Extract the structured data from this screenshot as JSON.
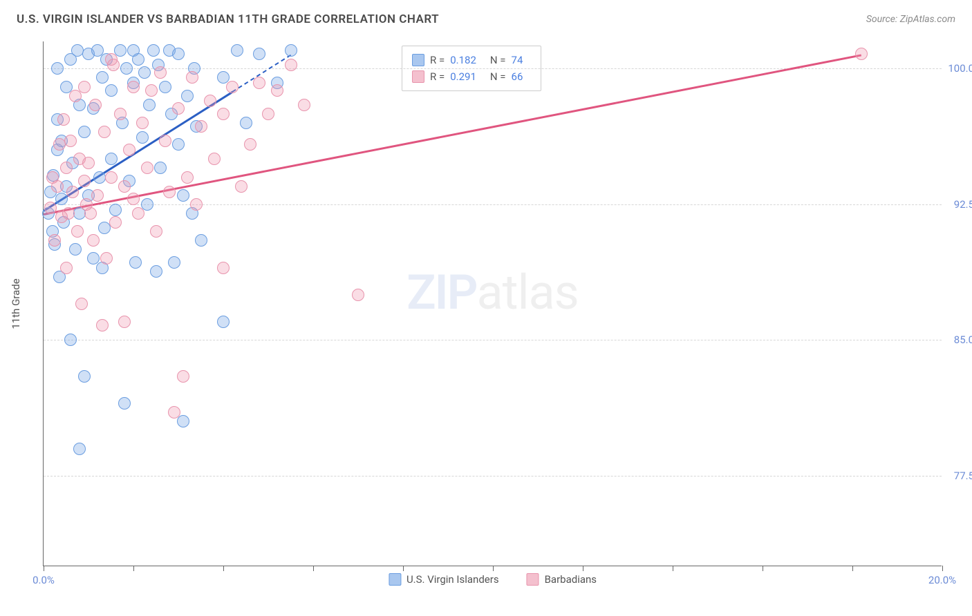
{
  "title": "U.S. VIRGIN ISLANDER VS BARBADIAN 11TH GRADE CORRELATION CHART",
  "source": "Source: ZipAtlas.com",
  "yaxis_title": "11th Grade",
  "watermark_zip": "ZIP",
  "watermark_atlas": "atlas",
  "chart": {
    "type": "scatter-correlation",
    "xlim": [
      0.0,
      20.0
    ],
    "ylim": [
      72.5,
      101.5
    ],
    "y_gridlines": [
      77.5,
      85.0,
      92.5,
      100.0
    ],
    "y_tick_labels": [
      "77.5%",
      "85.0%",
      "92.5%",
      "100.0%"
    ],
    "x_ticks": [
      0.0,
      2.0,
      4.0,
      6.0,
      8.0,
      10.0,
      12.0,
      14.0,
      16.0,
      18.0,
      20.0
    ],
    "x_tick_labels": {
      "0": "0.0%",
      "10": "20.0%"
    },
    "y_tick_color": "#6b8bd6",
    "x_tick_color": "#6b8bd6",
    "grid_color": "#d6d6d6",
    "axis_color": "#666666",
    "background": "#ffffff",
    "marker_radius": 9,
    "marker_stroke_width": 1.5,
    "series": [
      {
        "name": "U.S. Virgin Islanders",
        "color_fill": "rgba(120,165,230,0.35)",
        "color_stroke": "#6a9de0",
        "swatch_fill": "#a9c7ef",
        "swatch_border": "#6a9de0",
        "R": "0.182",
        "N": "74",
        "trend": {
          "x1": 0.0,
          "y1": 92.2,
          "x2": 5.5,
          "y2": 100.8,
          "color": "#2b5fc4",
          "dash_after_x": 4.2
        },
        "points": [
          [
            0.1,
            92.0
          ],
          [
            0.15,
            93.2
          ],
          [
            0.2,
            91.0
          ],
          [
            0.22,
            94.1
          ],
          [
            0.25,
            90.3
          ],
          [
            0.3,
            95.5
          ],
          [
            0.3,
            97.2
          ],
          [
            0.35,
            88.5
          ],
          [
            0.4,
            92.8
          ],
          [
            0.4,
            96.0
          ],
          [
            0.45,
            91.5
          ],
          [
            0.5,
            99.0
          ],
          [
            0.5,
            93.5
          ],
          [
            0.6,
            100.5
          ],
          [
            0.6,
            85.0
          ],
          [
            0.65,
            94.8
          ],
          [
            0.7,
            90.0
          ],
          [
            0.75,
            101.0
          ],
          [
            0.8,
            98.0
          ],
          [
            0.8,
            92.0
          ],
          [
            0.9,
            83.0
          ],
          [
            0.9,
            96.5
          ],
          [
            1.0,
            100.8
          ],
          [
            1.0,
            93.0
          ],
          [
            1.1,
            89.5
          ],
          [
            1.1,
            97.8
          ],
          [
            1.2,
            101.0
          ],
          [
            1.25,
            94.0
          ],
          [
            1.3,
            99.5
          ],
          [
            1.35,
            91.2
          ],
          [
            1.4,
            100.5
          ],
          [
            1.5,
            95.0
          ],
          [
            1.5,
            98.8
          ],
          [
            1.6,
            92.2
          ],
          [
            1.7,
            101.0
          ],
          [
            1.75,
            97.0
          ],
          [
            1.8,
            81.5
          ],
          [
            1.85,
            100.0
          ],
          [
            1.9,
            93.8
          ],
          [
            2.0,
            99.2
          ],
          [
            2.0,
            101.0
          ],
          [
            2.05,
            89.3
          ],
          [
            2.1,
            100.5
          ],
          [
            2.2,
            96.2
          ],
          [
            2.25,
            99.8
          ],
          [
            2.3,
            92.5
          ],
          [
            2.35,
            98.0
          ],
          [
            2.45,
            101.0
          ],
          [
            2.5,
            88.8
          ],
          [
            2.55,
            100.2
          ],
          [
            2.6,
            94.5
          ],
          [
            2.7,
            99.0
          ],
          [
            2.8,
            101.0
          ],
          [
            2.85,
            97.5
          ],
          [
            2.9,
            89.3
          ],
          [
            3.0,
            95.8
          ],
          [
            3.0,
            100.8
          ],
          [
            3.1,
            80.5
          ],
          [
            3.1,
            93.0
          ],
          [
            3.2,
            98.5
          ],
          [
            3.3,
            92.0
          ],
          [
            3.35,
            100.0
          ],
          [
            3.4,
            96.8
          ],
          [
            3.5,
            90.5
          ],
          [
            4.0,
            99.5
          ],
          [
            4.0,
            86.0
          ],
          [
            4.3,
            101.0
          ],
          [
            4.5,
            97.0
          ],
          [
            4.8,
            100.8
          ],
          [
            5.2,
            99.2
          ],
          [
            5.5,
            101.0
          ],
          [
            0.8,
            79.0
          ],
          [
            1.3,
            89.0
          ],
          [
            0.3,
            100.0
          ]
        ]
      },
      {
        "name": "Barbadians",
        "color_fill": "rgba(240,150,175,0.32)",
        "color_stroke": "#e893ac",
        "swatch_fill": "#f4c0ce",
        "swatch_border": "#e893ac",
        "R": "0.291",
        "N": "66",
        "trend": {
          "x1": 0.0,
          "y1": 92.0,
          "x2": 18.2,
          "y2": 100.8,
          "color": "#e0557f",
          "dash_after_x": null
        },
        "points": [
          [
            0.15,
            92.3
          ],
          [
            0.2,
            94.0
          ],
          [
            0.25,
            90.5
          ],
          [
            0.3,
            93.5
          ],
          [
            0.35,
            95.8
          ],
          [
            0.4,
            91.8
          ],
          [
            0.45,
            97.2
          ],
          [
            0.5,
            89.0
          ],
          [
            0.5,
            94.5
          ],
          [
            0.55,
            92.0
          ],
          [
            0.6,
            96.0
          ],
          [
            0.65,
            93.2
          ],
          [
            0.7,
            98.5
          ],
          [
            0.75,
            91.0
          ],
          [
            0.8,
            95.0
          ],
          [
            0.85,
            87.0
          ],
          [
            0.9,
            99.0
          ],
          [
            0.95,
            92.5
          ],
          [
            1.0,
            94.8
          ],
          [
            1.1,
            90.5
          ],
          [
            1.15,
            98.0
          ],
          [
            1.2,
            93.0
          ],
          [
            1.3,
            85.8
          ],
          [
            1.35,
            96.5
          ],
          [
            1.4,
            89.5
          ],
          [
            1.5,
            94.0
          ],
          [
            1.55,
            100.2
          ],
          [
            1.6,
            91.5
          ],
          [
            1.7,
            97.5
          ],
          [
            1.8,
            93.5
          ],
          [
            1.8,
            86.0
          ],
          [
            1.9,
            95.5
          ],
          [
            2.0,
            99.0
          ],
          [
            2.1,
            92.0
          ],
          [
            2.2,
            97.0
          ],
          [
            2.3,
            94.5
          ],
          [
            2.4,
            98.8
          ],
          [
            2.5,
            91.0
          ],
          [
            2.6,
            99.8
          ],
          [
            2.7,
            96.0
          ],
          [
            2.8,
            93.2
          ],
          [
            2.9,
            81.0
          ],
          [
            3.0,
            97.8
          ],
          [
            3.1,
            83.0
          ],
          [
            3.2,
            94.0
          ],
          [
            3.3,
            99.5
          ],
          [
            3.4,
            92.5
          ],
          [
            3.5,
            96.8
          ],
          [
            3.7,
            98.2
          ],
          [
            3.8,
            95.0
          ],
          [
            4.0,
            97.5
          ],
          [
            4.0,
            89.0
          ],
          [
            4.2,
            99.0
          ],
          [
            4.4,
            93.5
          ],
          [
            4.6,
            95.8
          ],
          [
            4.8,
            99.2
          ],
          [
            5.0,
            97.5
          ],
          [
            5.2,
            98.8
          ],
          [
            5.5,
            100.2
          ],
          [
            5.8,
            98.0
          ],
          [
            7.0,
            87.5
          ],
          [
            18.2,
            100.8
          ],
          [
            1.5,
            100.5
          ],
          [
            2.0,
            92.8
          ],
          [
            0.9,
            93.8
          ],
          [
            1.05,
            92.0
          ]
        ]
      }
    ]
  },
  "stats_legend": {
    "r_label": "R =",
    "n_label": "N ="
  }
}
